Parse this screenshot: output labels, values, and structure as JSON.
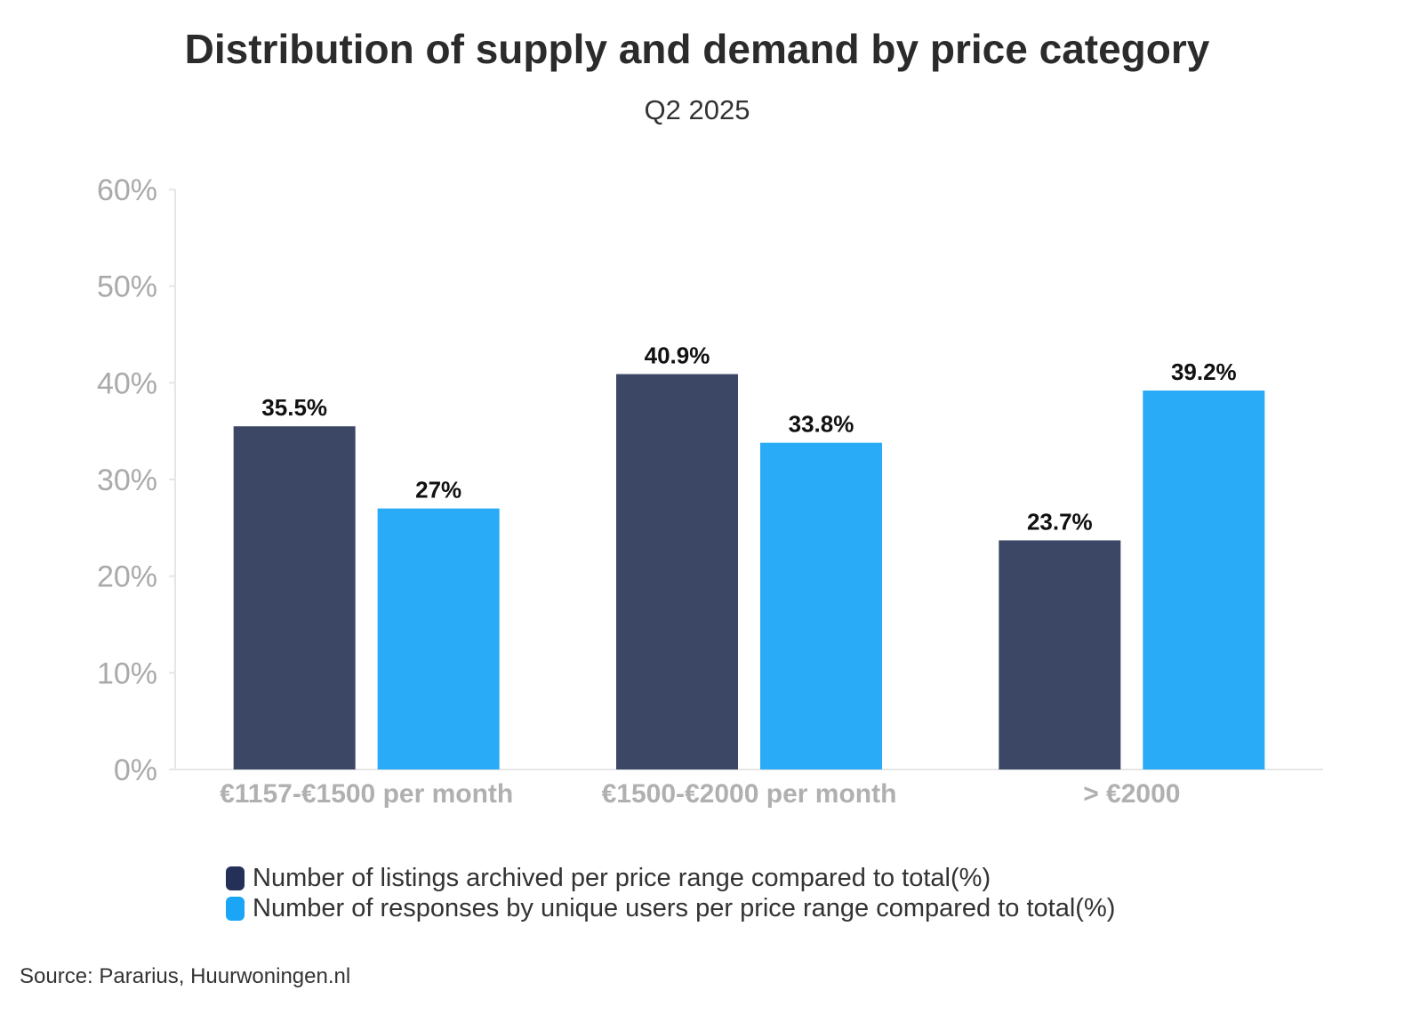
{
  "chart_data": {
    "type": "bar",
    "title": "Distribution of supply and demand by price category",
    "subtitle": "Q2 2025",
    "categories": [
      "€1157-€1500 per month",
      "€1500-€2000 per month",
      "> €2000"
    ],
    "series": [
      {
        "name": "Number of listings archived per price range compared to total(%)",
        "values": [
          35.5,
          40.9,
          23.7
        ],
        "labels": [
          "35.5%",
          "40.9%",
          "23.7%"
        ],
        "color": "#3c4766",
        "legend_color": "#243058"
      },
      {
        "name": "Number of responses by unique users per price range compared to total(%)",
        "values": [
          27,
          33.8,
          39.2
        ],
        "labels": [
          "27%",
          "33.8%",
          "39.2%"
        ],
        "color": "#29abf7",
        "legend_color": "#1aa5f7"
      }
    ],
    "ylim": [
      0,
      60
    ],
    "yticks": [
      "0%",
      "10%",
      "20%",
      "30%",
      "40%",
      "50%",
      "60%"
    ],
    "grid": false,
    "legend_position": "bottom"
  },
  "source": "Source: Pararius, Huurwoningen.nl"
}
